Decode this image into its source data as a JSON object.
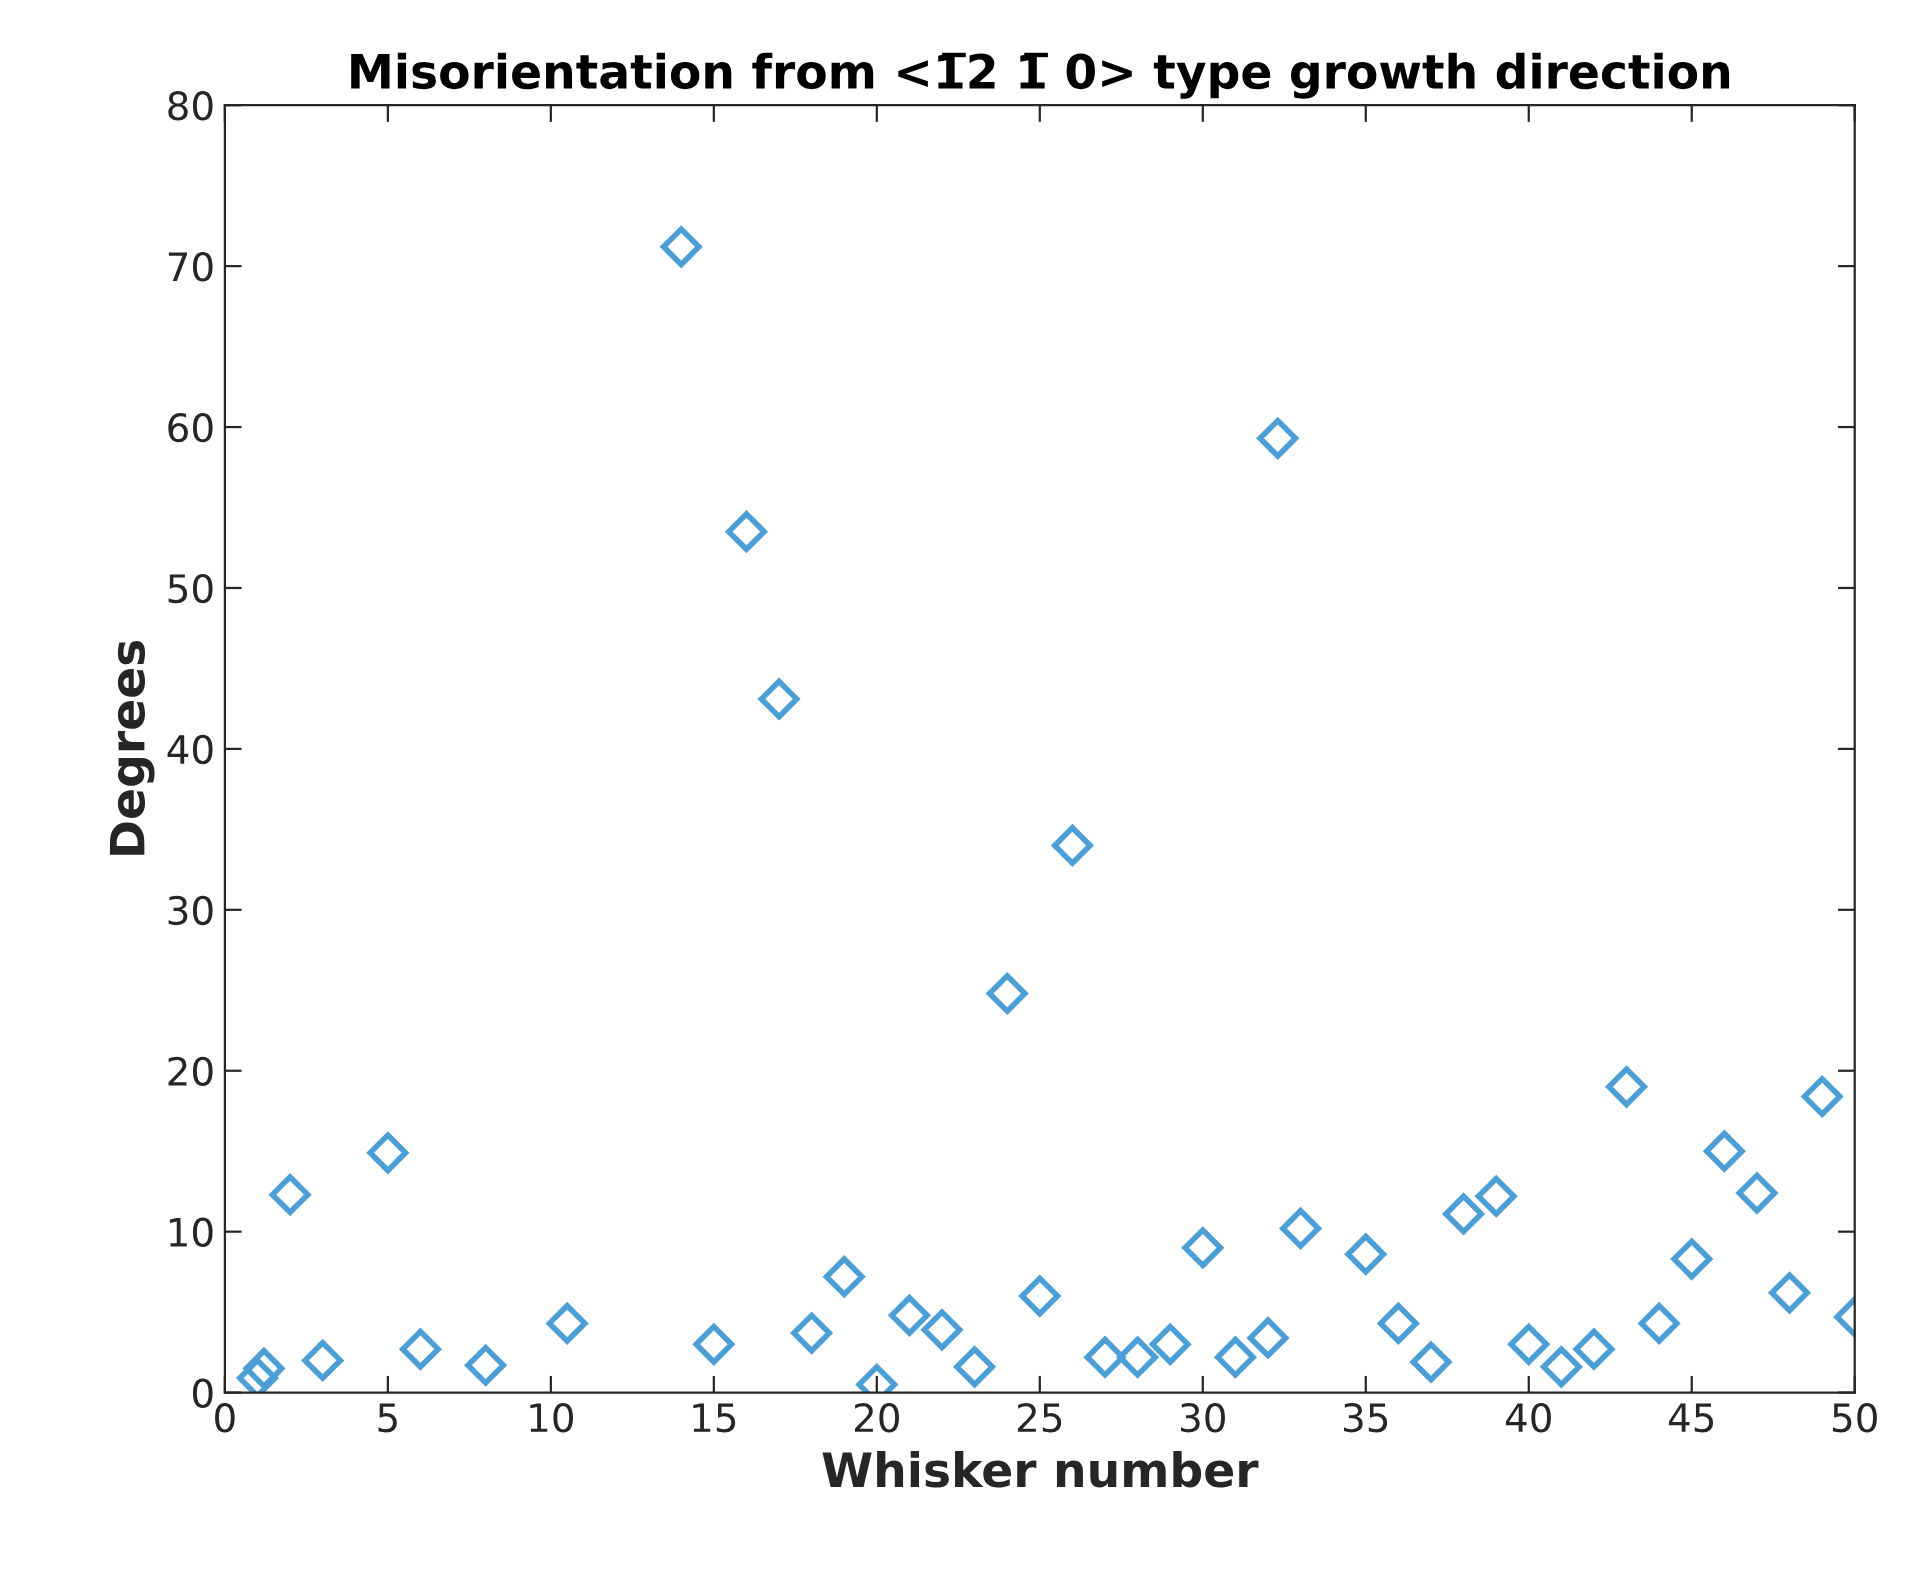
{
  "chart_data": {
    "type": "scatter",
    "title": "Misorientation from <1̅2 1̅ 0> type growth direction",
    "xlabel": "Whisker number",
    "ylabel": "Degrees",
    "xlim": [
      0,
      50
    ],
    "xticks": [
      0,
      5,
      10,
      15,
      20,
      25,
      30,
      35,
      40,
      45,
      50
    ],
    "ylim": [
      0,
      80
    ],
    "yticks": [
      0,
      10,
      20,
      30,
      40,
      50,
      60,
      70,
      80
    ],
    "grid": false,
    "marker": "diamond",
    "series": [
      {
        "color": "#4a9fd8",
        "x": [
          1,
          1.2,
          2,
          3,
          5,
          6,
          8,
          10.5,
          14,
          15,
          16,
          17,
          18,
          19,
          20,
          21,
          22,
          23,
          24,
          25,
          26,
          27,
          28,
          29,
          30,
          31,
          32,
          32.3,
          33,
          35,
          36,
          37,
          38,
          39,
          40,
          41,
          42,
          43,
          44,
          45,
          46,
          47,
          48,
          49,
          50
        ],
        "values": [
          0.9,
          1.5,
          12.3,
          2,
          14.9,
          2.7,
          1.7,
          4.3,
          71.2,
          3,
          53.5,
          43.1,
          3.7,
          7.2,
          0.5,
          4.8,
          3.9,
          1.6,
          24.8,
          6,
          34,
          2.2,
          2.2,
          3,
          9,
          2.2,
          3.4,
          59.3,
          10.2,
          8.6,
          4.3,
          1.9,
          11.1,
          12.2,
          3,
          1.6,
          2.7,
          19,
          4.3,
          8.3,
          15,
          12.4,
          6.2,
          18.4,
          4.7
        ]
      }
    ]
  }
}
